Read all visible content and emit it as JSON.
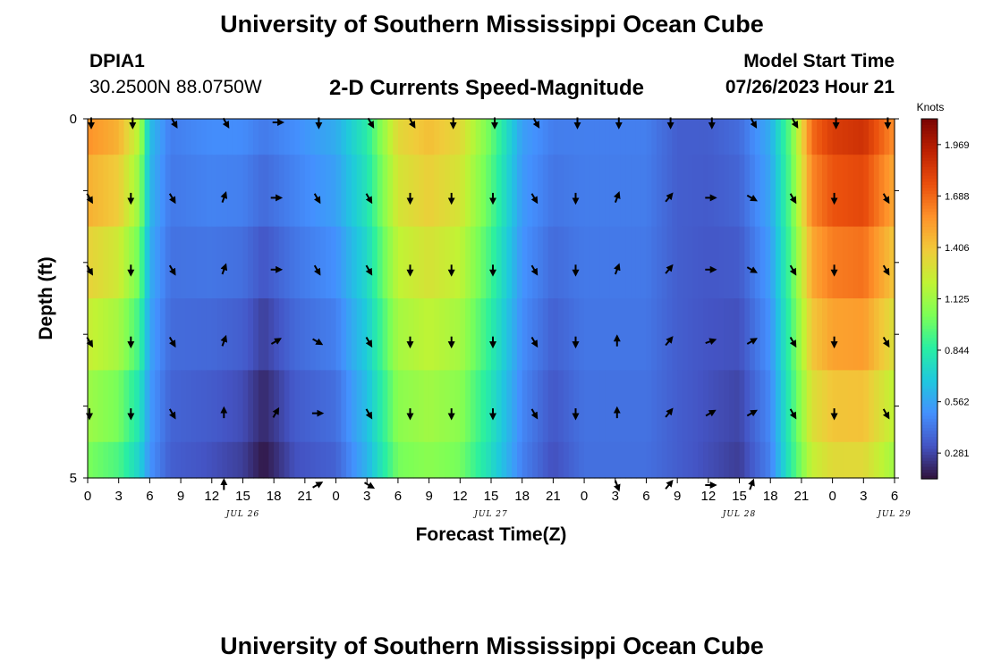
{
  "page": {
    "title": "University of Southern Mississippi Ocean Cube",
    "title_bottom": "University of Southern Mississippi Ocean Cube",
    "station": "DPIA1",
    "coords": "30.2500N  88.0750W",
    "subtitle": "2-D Currents Speed-Magnitude",
    "model_label": "Model Start Time",
    "model_time": "07/26/2023 Hour 21"
  },
  "chart_data": {
    "type": "heatmap",
    "title": "2-D Currents Speed-Magnitude",
    "xlabel": "Forecast Time(Z)",
    "ylabel": "Depth (ft)",
    "x_tick_labels": [
      "0",
      "3",
      "6",
      "9",
      "12",
      "15",
      "18",
      "21",
      "0",
      "3",
      "6",
      "9",
      "12",
      "15",
      "18",
      "21",
      "0",
      "3",
      "6",
      "9",
      "12",
      "15",
      "18",
      "21",
      "0",
      "3",
      "6"
    ],
    "date_labels": [
      {
        "text": "JUL 26",
        "hour": 15
      },
      {
        "text": "JUL 27",
        "hour": 39
      },
      {
        "text": "JUL 28",
        "hour": 63
      },
      {
        "text": "JUL 29",
        "hour": 78
      }
    ],
    "x_range_hours": [
      0,
      78
    ],
    "y_tick_labels": [
      "0",
      "5"
    ],
    "ylim": [
      0,
      5
    ],
    "depth_levels": [
      0,
      1,
      2,
      3,
      4,
      5
    ],
    "colorbar": {
      "label": "Knots",
      "ticks": [
        0.281,
        0.562,
        0.844,
        1.125,
        1.406,
        1.688,
        1.969
      ],
      "min": 0.14,
      "max": 2.11,
      "colors": [
        "#30123b",
        "#4454c4",
        "#4490fe",
        "#1fc8de",
        "#29efa2",
        "#7dff56",
        "#c1f334",
        "#f1ca3a",
        "#fe922a",
        "#ea4f0d",
        "#be2102",
        "#7a0403"
      ]
    },
    "speed_profile": [
      {
        "hour": 0,
        "surface": 1.6,
        "bottom": 1.0
      },
      {
        "hour": 3,
        "surface": 1.5,
        "bottom": 0.9
      },
      {
        "hour": 5,
        "surface": 1.2,
        "bottom": 0.7
      },
      {
        "hour": 6,
        "surface": 0.65,
        "bottom": 0.5
      },
      {
        "hour": 8,
        "surface": 0.45,
        "bottom": 0.35
      },
      {
        "hour": 12,
        "surface": 0.5,
        "bottom": 0.3
      },
      {
        "hour": 15,
        "surface": 0.5,
        "bottom": 0.25
      },
      {
        "hour": 17,
        "surface": 0.45,
        "bottom": 0.14
      },
      {
        "hour": 20,
        "surface": 0.5,
        "bottom": 0.3
      },
      {
        "hour": 24,
        "surface": 0.6,
        "bottom": 0.35
      },
      {
        "hour": 27,
        "surface": 0.85,
        "bottom": 0.6
      },
      {
        "hour": 30,
        "surface": 1.35,
        "bottom": 1.0
      },
      {
        "hour": 33,
        "surface": 1.45,
        "bottom": 1.05
      },
      {
        "hour": 36,
        "surface": 1.35,
        "bottom": 1.0
      },
      {
        "hour": 39,
        "surface": 1.0,
        "bottom": 0.75
      },
      {
        "hour": 42,
        "surface": 0.55,
        "bottom": 0.45
      },
      {
        "hour": 45,
        "surface": 0.45,
        "bottom": 0.3
      },
      {
        "hour": 48,
        "surface": 0.45,
        "bottom": 0.4
      },
      {
        "hour": 54,
        "surface": 0.45,
        "bottom": 0.4
      },
      {
        "hour": 57,
        "surface": 0.35,
        "bottom": 0.35
      },
      {
        "hour": 60,
        "surface": 0.35,
        "bottom": 0.3
      },
      {
        "hour": 63,
        "surface": 0.4,
        "bottom": 0.25
      },
      {
        "hour": 66,
        "surface": 0.6,
        "bottom": 0.45
      },
      {
        "hour": 68,
        "surface": 1.0,
        "bottom": 0.85
      },
      {
        "hour": 70,
        "surface": 1.7,
        "bottom": 1.2
      },
      {
        "hour": 72,
        "surface": 1.85,
        "bottom": 1.3
      },
      {
        "hour": 75,
        "surface": 1.9,
        "bottom": 1.3
      },
      {
        "hour": 78,
        "surface": 1.6,
        "bottom": 1.1
      }
    ],
    "vectors": {
      "note_units": "direction in degrees clockwise from north, shown per depth row",
      "hours": [
        0,
        4,
        8,
        13,
        18,
        22,
        27,
        31,
        35,
        39,
        43,
        47,
        51,
        56,
        60,
        64,
        68,
        72,
        77
      ],
      "rows": [
        [
          180,
          180,
          150,
          150,
          90,
          180,
          150,
          150,
          180,
          180,
          150,
          180,
          180,
          180,
          180,
          150,
          150,
          180,
          180
        ],
        [
          150,
          180,
          150,
          20,
          90,
          150,
          150,
          180,
          180,
          180,
          150,
          180,
          20,
          40,
          90,
          120,
          150,
          180,
          150
        ],
        [
          150,
          180,
          150,
          20,
          90,
          150,
          150,
          180,
          180,
          180,
          150,
          180,
          20,
          40,
          90,
          120,
          150,
          180,
          150
        ],
        [
          150,
          180,
          150,
          20,
          60,
          120,
          150,
          180,
          180,
          180,
          150,
          180,
          0,
          40,
          70,
          60,
          150,
          180,
          150
        ],
        [
          180,
          180,
          150,
          0,
          30,
          90,
          150,
          180,
          180,
          180,
          150,
          180,
          0,
          40,
          60,
          60,
          150,
          180,
          150
        ],
        [
          null,
          null,
          null,
          0,
          null,
          60,
          120,
          null,
          null,
          null,
          null,
          null,
          160,
          40,
          90,
          20,
          null,
          null,
          null
        ]
      ]
    }
  }
}
